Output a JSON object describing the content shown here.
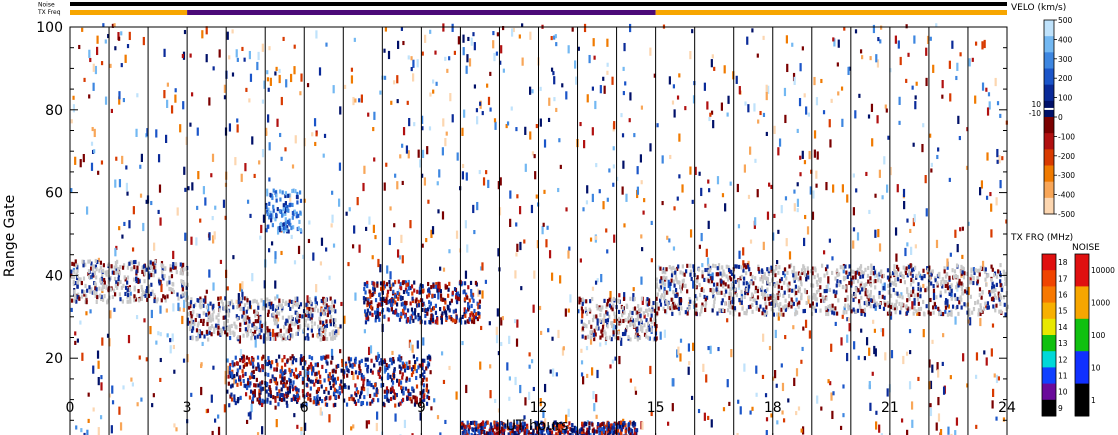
{
  "chart_data": {
    "type": "heatmap",
    "title": "",
    "xlabel": "UT hours",
    "ylabel": "Range Gate",
    "xlim": [
      0,
      24
    ],
    "ylim": [
      0,
      100
    ],
    "x_ticks": [
      0,
      3,
      6,
      9,
      12,
      15,
      18,
      21,
      24
    ],
    "x_tick_labels": [
      "0",
      "3",
      "6",
      "9",
      "12",
      "15",
      "18",
      "21",
      "24"
    ],
    "y_ticks": [
      0,
      20,
      40,
      60,
      80,
      100
    ],
    "y_tick_labels": [
      "0",
      "20",
      "40",
      "60",
      "80",
      "100"
    ],
    "scan_boundaries_ut": [
      1,
      2,
      3,
      4,
      5,
      6,
      7,
      8,
      9,
      10,
      11,
      12,
      13,
      14,
      15,
      16,
      17,
      18,
      19,
      20,
      21,
      22,
      23
    ],
    "top_strips": {
      "noise_label": "Noise",
      "txfreq_label": "TX Freq",
      "noise_color": "#000000",
      "txfreq_segments": [
        {
          "start": 0,
          "end": 3,
          "color": "#f7a600"
        },
        {
          "start": 3,
          "end": 15,
          "color": "#4b0a78"
        },
        {
          "start": 15,
          "end": 24,
          "color": "#f7a600"
        }
      ]
    },
    "velocity_bar": {
      "title": "VELO (km/s)",
      "tick_labels": [
        "500",
        "400",
        "300",
        "200",
        "100",
        "0",
        "-100",
        "-200",
        "-300",
        "-400",
        "-500"
      ],
      "near_zero_labels": [
        "10",
        "-10"
      ],
      "colors": [
        "#bfe2fb",
        "#73b8f2",
        "#3d86e0",
        "#1b55c8",
        "#0a2a98",
        "#001068",
        "#7a0000",
        "#b01010",
        "#d83a00",
        "#f07a00",
        "#f8a658",
        "#fcd6b0"
      ]
    },
    "txfreq_bar": {
      "title": "TX FRQ (MHz)",
      "tick_labels": [
        "18",
        "17",
        "16",
        "15",
        "14",
        "13",
        "12",
        "11",
        "10",
        "9"
      ],
      "colors": [
        "#e01010",
        "#f04400",
        "#f77800",
        "#f7b000",
        "#e8e800",
        "#10c010",
        "#00d8d8",
        "#1040ff",
        "#6a0a9a",
        "#000000"
      ]
    },
    "noise_bar": {
      "title": "NOISE",
      "tick_labels": [
        "10000",
        "1000",
        "100",
        "10",
        "1"
      ],
      "colors": [
        "#e01010",
        "#f7a600",
        "#10c010",
        "#1030ff",
        "#000000"
      ]
    },
    "ground_scatter_color": "#c8c8c8",
    "echo_bands": [
      {
        "ut_start": 0,
        "ut_end": 3,
        "gate_low": 33,
        "gate_high": 43,
        "type": "ground"
      },
      {
        "ut_start": 3,
        "ut_end": 6.8,
        "gate_low": 24,
        "gate_high": 34,
        "type": "ground"
      },
      {
        "ut_start": 4,
        "ut_end": 9.2,
        "gate_low": 8,
        "gate_high": 20,
        "type": "iono"
      },
      {
        "ut_start": 7.5,
        "ut_end": 10.5,
        "gate_low": 28,
        "gate_high": 38,
        "type": "iono"
      },
      {
        "ut_start": 13,
        "ut_end": 15,
        "gate_low": 24,
        "gate_high": 34,
        "type": "ground"
      },
      {
        "ut_start": 15,
        "ut_end": 24,
        "gate_low": 30,
        "gate_high": 42,
        "type": "ground"
      },
      {
        "ut_start": 5,
        "ut_end": 5.9,
        "gate_low": 50,
        "gate_high": 60,
        "type": "positive"
      },
      {
        "ut_start": 10,
        "ut_end": 14.5,
        "gate_low": 0,
        "gate_high": 4,
        "type": "iono"
      }
    ]
  }
}
